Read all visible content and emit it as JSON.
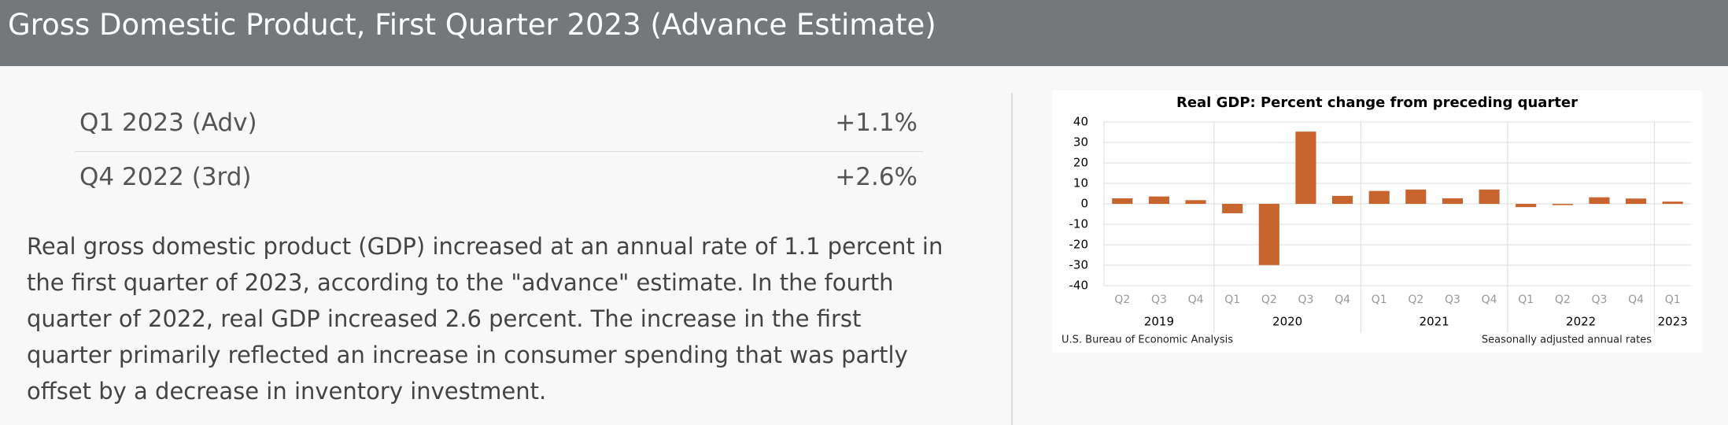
{
  "header": {
    "title": "Gross Domestic Product, First Quarter 2023 (Advance Estimate)"
  },
  "table": {
    "rows": [
      [
        "Q1 2023 (Adv)",
        "+1.1%"
      ],
      [
        "Q4 2022 (3rd)",
        "+2.6%"
      ]
    ]
  },
  "paragraph": "Real gross domestic product (GDP) increased at an annual rate of 1.1 percent in the first quarter of 2023, according to the \"advance\" estimate. In the fourth quarter of 2022, real GDP increased 2.6 percent. The increase in the first quarter primarily reflected an increase in consumer spending that was partly offset by a decrease in inventory investment.",
  "chart_data": {
    "type": "bar",
    "title": "Real GDP:  Percent change from preceding quarter",
    "x": [
      {
        "quarter": "Q2",
        "year": "2019"
      },
      {
        "quarter": "Q3",
        "year": "2019"
      },
      {
        "quarter": "Q4",
        "year": "2019"
      },
      {
        "quarter": "Q1",
        "year": "2020"
      },
      {
        "quarter": "Q2",
        "year": "2020"
      },
      {
        "quarter": "Q3",
        "year": "2020"
      },
      {
        "quarter": "Q4",
        "year": "2020"
      },
      {
        "quarter": "Q1",
        "year": "2021"
      },
      {
        "quarter": "Q2",
        "year": "2021"
      },
      {
        "quarter": "Q3",
        "year": "2021"
      },
      {
        "quarter": "Q4",
        "year": "2021"
      },
      {
        "quarter": "Q1",
        "year": "2022"
      },
      {
        "quarter": "Q2",
        "year": "2022"
      },
      {
        "quarter": "Q3",
        "year": "2022"
      },
      {
        "quarter": "Q4",
        "year": "2022"
      },
      {
        "quarter": "Q1",
        "year": "2023"
      }
    ],
    "values": [
      2.7,
      3.6,
      1.8,
      -4.6,
      -29.9,
      35.3,
      3.9,
      6.3,
      7.0,
      2.7,
      7.0,
      -1.6,
      -0.6,
      3.2,
      2.6,
      1.1
    ],
    "color": "#c8642d",
    "ylim": [
      -40,
      40
    ],
    "yticks": [
      -40,
      -30,
      -20,
      -10,
      0,
      10,
      20,
      30,
      40
    ],
    "grid": true,
    "source": "U.S. Bureau of Economic Analysis",
    "note": "Seasonally adjusted annual rates"
  }
}
